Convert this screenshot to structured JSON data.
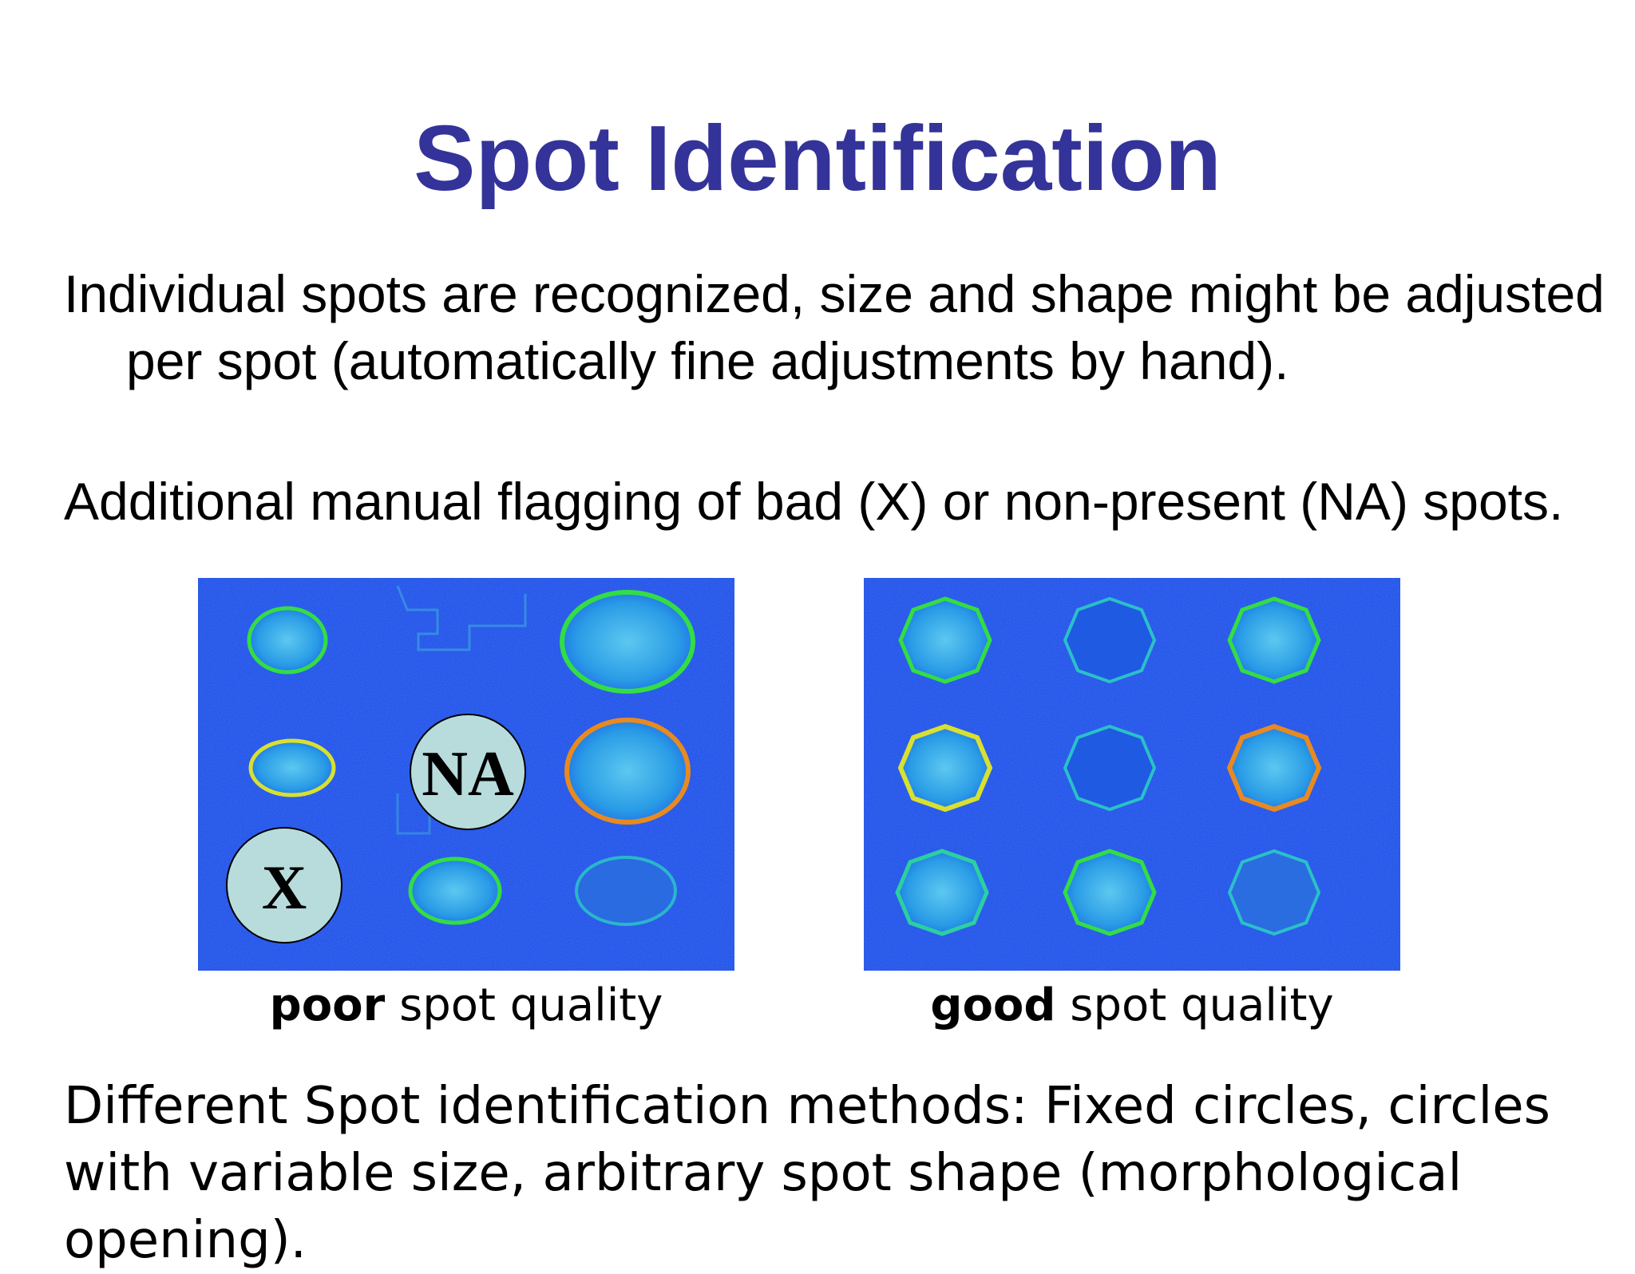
{
  "slide": {
    "title": "Spot Identification",
    "bullets": [
      "Individual spots are recognized, size and shape might be adjusted per spot (automatically fine adjustments by hand).",
      "Additional manual flagging of bad (X) or non-present (NA) spots."
    ],
    "images": {
      "left": {
        "caption_bold": "poor",
        "caption_rest": " spot quality",
        "flags": {
          "na": "NA",
          "x": "X"
        }
      },
      "right": {
        "caption_bold": "good",
        "caption_rest": " spot quality"
      }
    },
    "footer_text": "Different Spot identification methods: Fixed circles, circles with variable size, arbitrary spot shape (morphological opening)."
  },
  "colors": {
    "title": "#333399",
    "microarray_background": "#1846e6",
    "spot_fill": "#2fa6e8",
    "outline_green": "#33dd44",
    "outline_yellow": "#d8e030",
    "outline_orange": "#e88a20",
    "outline_cyan": "#2bc0c8",
    "flag_fill": "#b8dcdc"
  }
}
